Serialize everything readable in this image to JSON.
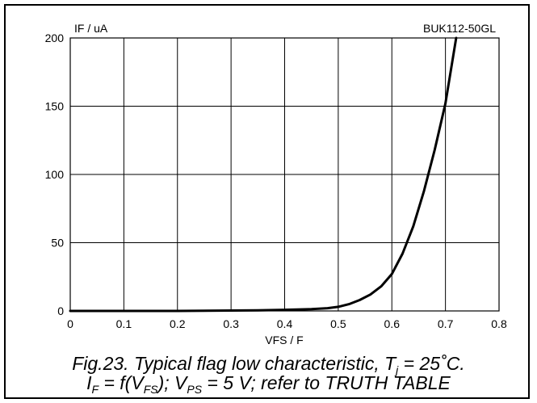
{
  "chart_data": {
    "type": "line",
    "title": "",
    "corner_label": "BUK112-50GL",
    "xlabel": "VFS / F",
    "ylabel": "IF / uA",
    "xlim": [
      0,
      0.8
    ],
    "ylim": [
      0,
      200
    ],
    "x_ticks": [
      "0",
      "0.1",
      "0.2",
      "0.3",
      "0.4",
      "0.5",
      "0.6",
      "0.7",
      "0.8"
    ],
    "y_ticks": [
      "0",
      "50",
      "100",
      "150",
      "200"
    ],
    "grid": true,
    "series": [
      {
        "x": [
          0,
          0.1,
          0.2,
          0.3,
          0.35,
          0.4,
          0.45,
          0.48,
          0.5,
          0.52,
          0.54,
          0.56,
          0.58,
          0.6,
          0.62,
          0.64,
          0.66,
          0.68,
          0.7,
          0.72
        ],
        "y": [
          0,
          0,
          0,
          0.3,
          0.5,
          0.8,
          1.3,
          2,
          3,
          5,
          8,
          12,
          18,
          27,
          42,
          62,
          88,
          118,
          152,
          200
        ]
      }
    ]
  },
  "caption": {
    "line1": "Fig.23.   Typical flag low characteristic, T",
    "line1_sub": "j",
    "line1_end": " = 25˚C.",
    "line2_a": "I",
    "line2_a_sub": "F",
    "line2_b": " = f(V",
    "line2_b_sub": "FS",
    "line2_c": "); V",
    "line2_c_sub": "PS",
    "line2_d": " = 5 V; refer to TRUTH TABLE"
  }
}
